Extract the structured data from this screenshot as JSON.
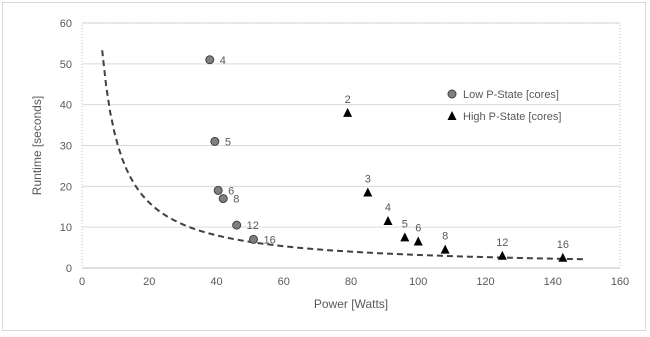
{
  "chart_data": {
    "type": "scatter",
    "title": "",
    "xlabel": "Power [Watts]",
    "ylabel": "Runtime [seconds]",
    "xlim": [
      0,
      160
    ],
    "ylim": [
      0,
      60
    ],
    "xticks": [
      0,
      20,
      40,
      60,
      80,
      100,
      120,
      140,
      160
    ],
    "yticks": [
      0,
      10,
      20,
      30,
      40,
      50,
      60
    ],
    "grid": "horizontal",
    "legend_position": "right",
    "series": [
      {
        "name": "Low P-State [cores]",
        "marker": "circle",
        "color": "#7f7f7f",
        "points": [
          {
            "x": 38,
            "y": 51,
            "label": "4"
          },
          {
            "x": 39.5,
            "y": 31,
            "label": "5"
          },
          {
            "x": 40.5,
            "y": 19,
            "label": "6"
          },
          {
            "x": 42,
            "y": 17,
            "label": "8"
          },
          {
            "x": 46,
            "y": 10.5,
            "label": "12"
          },
          {
            "x": 51,
            "y": 7,
            "label": "16"
          }
        ]
      },
      {
        "name": "High P-State [cores]",
        "marker": "triangle",
        "color": "#000000",
        "points": [
          {
            "x": 79,
            "y": 38,
            "label": "2"
          },
          {
            "x": 85,
            "y": 18.5,
            "label": "3"
          },
          {
            "x": 91,
            "y": 11.5,
            "label": "4"
          },
          {
            "x": 96,
            "y": 7.5,
            "label": "5"
          },
          {
            "x": 100,
            "y": 6.5,
            "label": "6"
          },
          {
            "x": 108,
            "y": 4.5,
            "label": "8"
          },
          {
            "x": 125,
            "y": 3,
            "label": "12"
          },
          {
            "x": 143,
            "y": 2.5,
            "label": "16"
          }
        ]
      }
    ],
    "trendline": {
      "style": "dashed",
      "color": "#404040",
      "form": "y = k / x",
      "k": 320,
      "x_range": [
        6,
        149
      ]
    }
  }
}
